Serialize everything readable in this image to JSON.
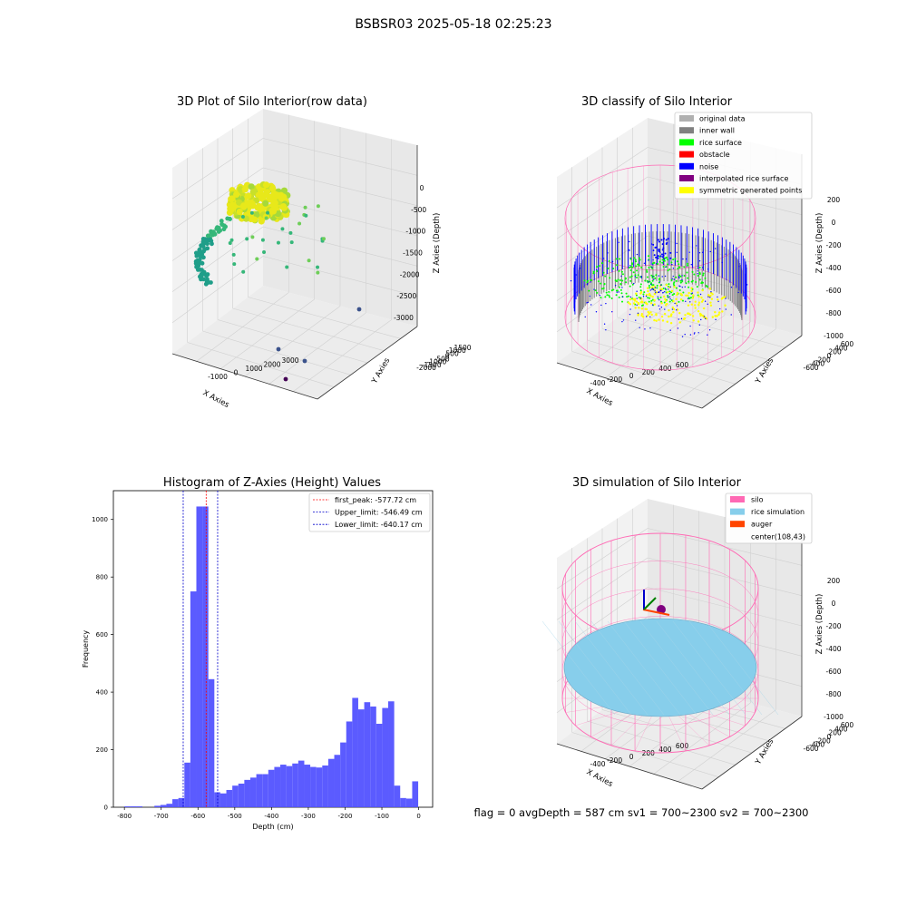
{
  "suptitle": "BSBSR03 2025-05-18 02:25:23",
  "status_line": "flag = 0     avgDepth = 587 cm  sv1 = 700~2300  sv2 = 700~2300",
  "colors": {
    "bar": "#5252ff",
    "first_peak": "#ff0000",
    "limit": "#0000cc",
    "silo": "#ff69b4",
    "rice": "#87ceeb",
    "auger": "#ff4500",
    "original": "#b0b0b0",
    "inner_wall": "#808080",
    "rice_surface": "#00ff00",
    "obstacle": "#ff0000",
    "noise": "#0000ff",
    "interpolated": "#800080",
    "symmetric": "#ffff00"
  },
  "chart_data": [
    {
      "type": "scatter",
      "projection": "3d",
      "title": "3D Plot of Silo Interior(row data)",
      "xlabel": "X Axies",
      "ylabel": "Y Axies",
      "zlabel": "Z Axies (Depth)",
      "xticks": [
        "-1000",
        "0",
        "1000",
        "2000",
        "3000"
      ],
      "yticks": [
        "-2000",
        "-1500",
        "-1000",
        "-500",
        "0",
        "500",
        "1000",
        "1500"
      ],
      "zticks": [
        "0",
        "-500",
        "-1000",
        "-1500",
        "-2000",
        "-2500",
        "-3000"
      ],
      "colormap": "viridis",
      "outlier_points": [
        {
          "x": 3000,
          "y": 1500,
          "z": -3300
        },
        {
          "x": 2600,
          "y": -1200,
          "z": -3500
        },
        {
          "x": 2000,
          "y": -300,
          "z": -3400
        },
        {
          "x": 2500,
          "y": -1800,
          "z": -3600
        }
      ],
      "grid": true
    },
    {
      "type": "scatter",
      "projection": "3d",
      "title": "3D classify of Silo Interior",
      "xlabel": "X Axies",
      "ylabel": "Y Axies",
      "zlabel": "Z Axies (Depth)",
      "xticks": [
        "-400",
        "-200",
        "0",
        "200",
        "400",
        "600"
      ],
      "yticks": [
        "-600",
        "-400",
        "-200",
        "0",
        "200",
        "400",
        "600"
      ],
      "zticks": [
        "-1000",
        "-800",
        "-600",
        "-400",
        "-200",
        "0",
        "200"
      ],
      "legend": [
        "original data",
        "inner wall",
        "rice surface",
        "obstacle",
        "noise",
        "interpolated rice surface",
        "symmetric generated points"
      ],
      "legend_loc": "upper right",
      "grid": true
    },
    {
      "type": "bar",
      "title": "Histogram of Z-Axies (Height) Values",
      "xlabel": "Depth (cm)",
      "ylabel": "Frequency",
      "xlim": [
        -830,
        38
      ],
      "ylim": [
        0,
        1100
      ],
      "xticks": [
        -800,
        -700,
        -600,
        -500,
        -400,
        -300,
        -200,
        -100,
        0
      ],
      "yticks": [
        0,
        200,
        400,
        600,
        800,
        1000
      ],
      "bin_width": 16.3,
      "bins": [
        {
          "x": -800,
          "v": 3
        },
        {
          "x": -783.7,
          "v": 3
        },
        {
          "x": -767.4,
          "v": 3
        },
        {
          "x": -718.5,
          "v": 5
        },
        {
          "x": -702.2,
          "v": 8
        },
        {
          "x": -685.9,
          "v": 12
        },
        {
          "x": -669.6,
          "v": 28
        },
        {
          "x": -653.3,
          "v": 32
        },
        {
          "x": -637.0,
          "v": 155
        },
        {
          "x": -620.7,
          "v": 750
        },
        {
          "x": -604.4,
          "v": 1045
        },
        {
          "x": -588.1,
          "v": 1045
        },
        {
          "x": -571.8,
          "v": 445
        },
        {
          "x": -555.5,
          "v": 52
        },
        {
          "x": -539.2,
          "v": 48
        },
        {
          "x": -522.9,
          "v": 60
        },
        {
          "x": -506.6,
          "v": 75
        },
        {
          "x": -490.3,
          "v": 82
        },
        {
          "x": -474.0,
          "v": 95
        },
        {
          "x": -457.7,
          "v": 103
        },
        {
          "x": -441.4,
          "v": 115
        },
        {
          "x": -425.1,
          "v": 115
        },
        {
          "x": -408.8,
          "v": 130
        },
        {
          "x": -392.5,
          "v": 140
        },
        {
          "x": -376.2,
          "v": 148
        },
        {
          "x": -359.9,
          "v": 143
        },
        {
          "x": -343.6,
          "v": 152
        },
        {
          "x": -327.3,
          "v": 162
        },
        {
          "x": -311.0,
          "v": 148
        },
        {
          "x": -294.7,
          "v": 140
        },
        {
          "x": -278.4,
          "v": 138
        },
        {
          "x": -262.1,
          "v": 145
        },
        {
          "x": -245.8,
          "v": 168
        },
        {
          "x": -229.5,
          "v": 182
        },
        {
          "x": -213.2,
          "v": 225
        },
        {
          "x": -196.9,
          "v": 298
        },
        {
          "x": -180.6,
          "v": 380
        },
        {
          "x": -164.3,
          "v": 340
        },
        {
          "x": -148.0,
          "v": 365
        },
        {
          "x": -131.7,
          "v": 350
        },
        {
          "x": -115.4,
          "v": 290
        },
        {
          "x": -99.1,
          "v": 345
        },
        {
          "x": -82.8,
          "v": 368
        },
        {
          "x": -66.5,
          "v": 75
        },
        {
          "x": -50.2,
          "v": 32
        },
        {
          "x": -33.9,
          "v": 30
        },
        {
          "x": -17.6,
          "v": 90
        }
      ],
      "vlines": [
        {
          "value": -577.72,
          "label": "first_peak: -577.72 cm",
          "color": "#ff0000"
        },
        {
          "value": -546.49,
          "label": "Upper_limit: -546.49 cm",
          "color": "#0000cc"
        },
        {
          "value": -640.17,
          "label": "Lower_limit: -640.17 cm",
          "color": "#0000cc"
        }
      ],
      "legend_loc": "upper right"
    },
    {
      "type": "surface",
      "projection": "3d",
      "title": "3D simulation of Silo Interior",
      "xlabel": "X Axies",
      "ylabel": "Y Axies",
      "zlabel": "Z Axies (Depth)",
      "xticks": [
        "-400",
        "-200",
        "0",
        "200",
        "400",
        "600"
      ],
      "yticks": [
        "-600",
        "-400",
        "-200",
        "0",
        "200",
        "400",
        "600"
      ],
      "zticks": [
        "-1000",
        "-800",
        "-600",
        "-400",
        "-200",
        "0",
        "200"
      ],
      "legend": [
        "silo",
        "rice simulation",
        "auger",
        "center(108,43)"
      ],
      "legend_loc": "upper right",
      "center": [
        108,
        43
      ],
      "avg_depth_cm": 587
    }
  ]
}
